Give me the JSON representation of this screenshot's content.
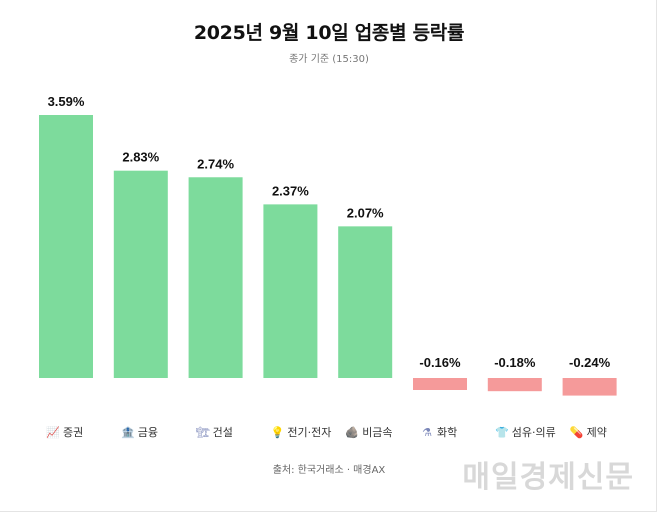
{
  "header": {
    "title": "2025년 9월 10일 업종별 등락률",
    "subtitle": "종가 기준 (15:30)"
  },
  "footer": {
    "source": "출처: 한국거래소 · 매경AX",
    "watermark": "매일경제신문"
  },
  "colors": {
    "positive": "#7ddb9c",
    "negative": "#f59a9a"
  },
  "chart_data": {
    "type": "bar",
    "title": "2025년 9월 10일 업종별 등락률",
    "subtitle": "종가 기준 (15:30)",
    "xlabel": "",
    "ylabel": "",
    "ylim": [
      -0.24,
      3.59
    ],
    "grid": false,
    "categories": [
      "증권",
      "금융",
      "건설",
      "전기·전자",
      "비금속",
      "화학",
      "섬유·의류",
      "제약"
    ],
    "icons": [
      "chart-icon",
      "bank-icon",
      "crane-icon",
      "lightbulb-icon",
      "rock-icon",
      "flask-icon",
      "shirt-icon",
      "pill-icon"
    ],
    "icon_glyphs": [
      "📈",
      "🏦",
      "🏗",
      "💡",
      "🪨",
      "⚗",
      "👕",
      "💊"
    ],
    "values": [
      3.59,
      2.83,
      2.74,
      2.37,
      2.07,
      -0.16,
      -0.18,
      -0.24
    ],
    "labels": [
      "3.59%",
      "2.83%",
      "2.74%",
      "2.37%",
      "2.07%",
      "-0.16%",
      "-0.18%",
      "-0.24%"
    ]
  }
}
